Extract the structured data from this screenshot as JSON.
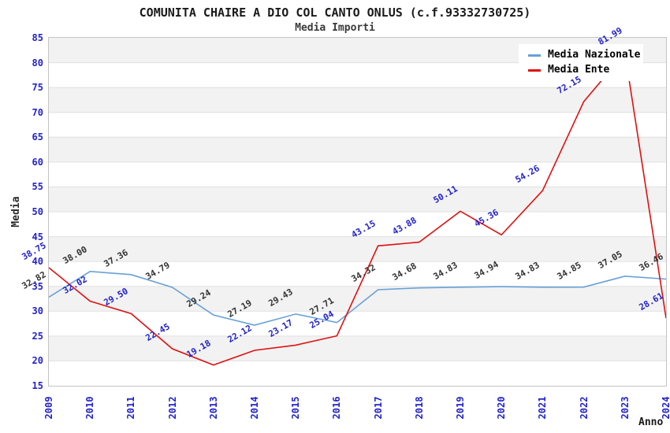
{
  "header": {
    "title": "COMUNITA CHAIRE A DIO COL CANTO ONLUS (c.f.93332730725)",
    "subtitle": "Media Importi"
  },
  "chart_data": {
    "type": "line",
    "title": "COMUNITA CHAIRE A DIO COL CANTO ONLUS (c.f.93332730725)",
    "subtitle": "Media Importi",
    "xlabel": "Anno",
    "ylabel": "Media",
    "ylim": [
      15,
      85
    ],
    "y_ticks": [
      15,
      20,
      25,
      30,
      35,
      40,
      45,
      50,
      55,
      60,
      65,
      70,
      75,
      80,
      85
    ],
    "x": [
      2009,
      2010,
      2011,
      2012,
      2013,
      2014,
      2015,
      2016,
      2017,
      2018,
      2019,
      2020,
      2021,
      2022,
      2023,
      2024
    ],
    "series": [
      {
        "name": "Media Nazionale",
        "color": "#68a1d8",
        "label_color": "#333333",
        "values": [
          32.82,
          38.0,
          37.36,
          34.79,
          29.24,
          27.19,
          29.43,
          27.71,
          34.32,
          34.68,
          34.83,
          34.94,
          34.83,
          34.85,
          37.05,
          36.46
        ]
      },
      {
        "name": "Media Ente",
        "color": "#e01010",
        "label_color": "#2323cb",
        "values": [
          38.75,
          32.02,
          29.5,
          22.45,
          19.18,
          22.12,
          23.17,
          25.04,
          43.15,
          43.88,
          50.11,
          45.36,
          54.26,
          72.15,
          81.99,
          28.61
        ]
      }
    ],
    "grid": "horizontal gridlines with alternating gray bands",
    "band_color": "#f2f2f2",
    "gridline_color": "#e0e0e0",
    "tick_color": "#2323cb",
    "legend_position": "top-right"
  }
}
